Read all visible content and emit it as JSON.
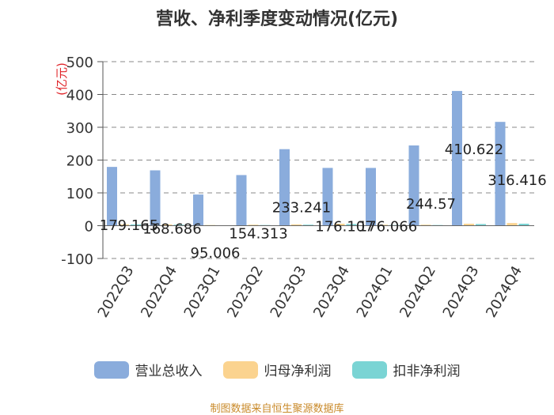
{
  "chart_data": {
    "type": "bar",
    "title": "营收、净利季度变动情况(亿元)",
    "ylabel": "(亿元)",
    "xlabel": "",
    "ylim": [
      -100,
      500
    ],
    "yticks": [
      -100,
      0,
      100,
      200,
      300,
      400,
      500
    ],
    "grid": true,
    "legend_position": "bottom",
    "categories": [
      "2022Q3",
      "2022Q4",
      "2023Q1",
      "2023Q2",
      "2023Q3",
      "2023Q4",
      "2024Q1",
      "2024Q2",
      "2024Q3",
      "2024Q4"
    ],
    "series": [
      {
        "name": "营业总收入",
        "color": "#8aacdc",
        "values": [
          179.165,
          168.686,
          95.006,
          154.313,
          233.241,
          176.107,
          176.066,
          244.57,
          410.622,
          316.416
        ],
        "data_labels": [
          "179.165",
          "168.686",
          "95.006",
          "154.313",
          "233.241",
          "176.107",
          "176.066",
          "244.57",
          "410.622",
          "316.416"
        ]
      },
      {
        "name": "归母净利润",
        "color": "#fbd38f",
        "values": [
          4,
          4,
          2,
          3,
          4,
          6,
          3,
          3,
          6,
          8
        ]
      },
      {
        "name": "扣非净利润",
        "color": "#7ad4d4",
        "values": [
          4,
          3,
          1,
          2,
          3,
          5,
          2,
          2,
          5,
          6
        ]
      }
    ]
  },
  "footer": {
    "source": "制图数据来自恒生聚源数据库"
  }
}
